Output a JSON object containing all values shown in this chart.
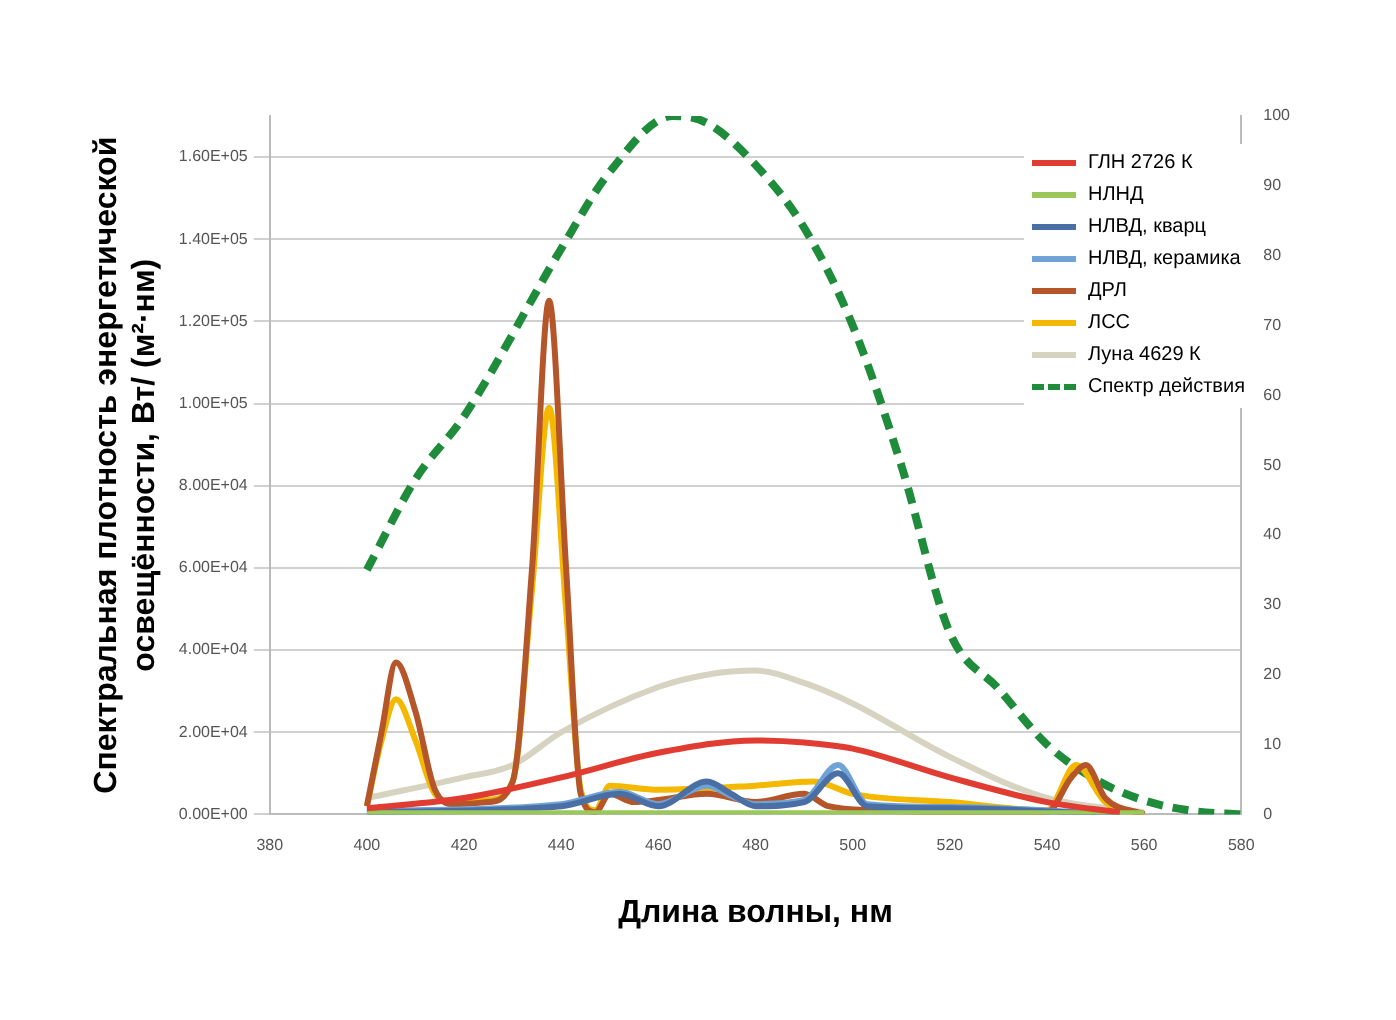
{
  "chart_data": {
    "type": "line",
    "xlabel": "Длина волны, нм",
    "ylabel": [
      "Спектральная плотность энергетической",
      "освещённости, Вт/ (м²·нм)"
    ],
    "xlim": [
      380,
      580
    ],
    "xticks": [
      380,
      400,
      420,
      440,
      460,
      480,
      500,
      520,
      540,
      560,
      580
    ],
    "ylim": [
      0,
      170000
    ],
    "yticks": [
      {
        "value": 0,
        "label": "0.00E+00"
      },
      {
        "value": 20000,
        "label": "2.00E+04"
      },
      {
        "value": 40000,
        "label": "4.00E+04"
      },
      {
        "value": 60000,
        "label": "6.00E+04"
      },
      {
        "value": 80000,
        "label": "8.00E+04"
      },
      {
        "value": 100000,
        "label": "1.00E+05"
      },
      {
        "value": 120000,
        "label": "1.20E+05"
      },
      {
        "value": 140000,
        "label": "1.40E+05"
      },
      {
        "value": 160000,
        "label": "1.60E+05"
      }
    ],
    "y2lim": [
      0,
      100
    ],
    "y2ticks": [
      0,
      10,
      20,
      30,
      40,
      50,
      60,
      70,
      80,
      90,
      100
    ],
    "grid": "y",
    "legend": "top right",
    "marker": "none",
    "series": [
      {
        "name": "ГЛН 2726 К",
        "color": "#e03c31",
        "x": [
          400,
          420,
          440,
          460,
          480,
          490,
          500,
          520,
          540,
          555
        ],
        "values": [
          1500,
          4000,
          9000,
          15000,
          18000,
          17500,
          16000,
          9000,
          3000,
          500
        ]
      },
      {
        "name": "НЛНД",
        "color": "#9bc85a",
        "x": [
          400,
          440,
          480,
          520,
          560
        ],
        "values": [
          300,
          300,
          300,
          300,
          300
        ]
      },
      {
        "name": "НЛВД, кварц",
        "color": "#4a6fa5",
        "x": [
          400,
          440,
          452,
          460,
          470,
          475,
          480,
          490,
          497,
          503,
          520,
          555
        ],
        "values": [
          500,
          2000,
          5000,
          2000,
          8000,
          5000,
          2000,
          3000,
          10000,
          2000,
          1500,
          0
        ]
      },
      {
        "name": "НЛВД, керамика",
        "color": "#6fa3d8",
        "x": [
          400,
          440,
          452,
          460,
          470,
          475,
          480,
          490,
          497,
          503,
          520,
          555
        ],
        "values": [
          800,
          2500,
          5500,
          2500,
          7000,
          4500,
          2500,
          3500,
          12000,
          2500,
          1800,
          0
        ]
      },
      {
        "name": "ДРЛ",
        "color": "#b5562a",
        "x": [
          400,
          403,
          406,
          410,
          414,
          418,
          425,
          430,
          434,
          437.5,
          441,
          444,
          447,
          450,
          455,
          460,
          470,
          480,
          490,
          495,
          505,
          520,
          540,
          545,
          548,
          552,
          560
        ],
        "values": [
          2000,
          20000,
          37000,
          25000,
          6000,
          2500,
          3000,
          8000,
          60000,
          125000,
          60000,
          5000,
          500,
          5000,
          3000,
          3500,
          5000,
          3000,
          5000,
          2000,
          1000,
          500,
          500,
          9000,
          12000,
          4000,
          0
        ]
      },
      {
        "name": "ЛСС",
        "color": "#f5b800",
        "x": [
          400,
          403,
          406,
          410,
          414,
          418,
          425,
          430,
          434,
          437.5,
          441,
          444,
          447,
          450,
          460,
          480,
          492,
          500,
          520,
          540,
          546,
          552,
          560
        ],
        "values": [
          2000,
          18000,
          28000,
          18000,
          5000,
          3000,
          3500,
          8000,
          55000,
          99000,
          50000,
          6000,
          1000,
          7000,
          6000,
          7000,
          8000,
          5000,
          3000,
          1000,
          12000,
          3000,
          0
        ]
      },
      {
        "name": "Луна 4629 К",
        "color": "#d6d3c0",
        "x": [
          400,
          420,
          430,
          440,
          460,
          470,
          480,
          490,
          500,
          520,
          540,
          560
        ],
        "values": [
          4000,
          9000,
          12000,
          20000,
          31000,
          34000,
          35000,
          32000,
          27000,
          14000,
          4000,
          500
        ]
      },
      {
        "name": "Спектр действия",
        "color": "#1e8c3a",
        "axis": "y2",
        "line_style": "dashed",
        "x": [
          400,
          410,
          420,
          440,
          450,
          463,
          470,
          480,
          490,
          500,
          510,
          520,
          530,
          540,
          550,
          560,
          570,
          580
        ],
        "values": [
          35,
          48,
          57,
          81,
          92,
          100,
          99,
          93,
          84,
          70,
          50,
          26,
          18,
          10,
          5,
          2,
          0.5,
          0
        ]
      }
    ]
  }
}
